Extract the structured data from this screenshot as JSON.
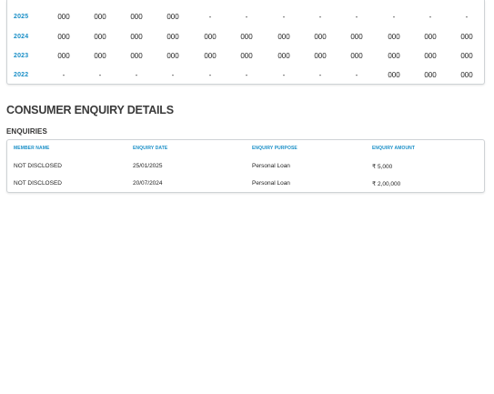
{
  "history": {
    "rows": [
      {
        "year": "2025",
        "cells": [
          "000",
          "000",
          "000",
          "000",
          "-",
          "-",
          "-",
          "-",
          "-",
          "-",
          "-",
          "-"
        ]
      },
      {
        "year": "2024",
        "cells": [
          "000",
          "000",
          "000",
          "000",
          "000",
          "000",
          "000",
          "000",
          "000",
          "000",
          "000",
          "000"
        ]
      },
      {
        "year": "2023",
        "cells": [
          "000",
          "000",
          "000",
          "000",
          "000",
          "000",
          "000",
          "000",
          "000",
          "000",
          "000",
          "000"
        ]
      },
      {
        "year": "2022",
        "cells": [
          "-",
          "-",
          "-",
          "-",
          "-",
          "-",
          "-",
          "-",
          "-",
          "000",
          "000",
          "000"
        ]
      }
    ]
  },
  "section": {
    "title": "CONSUMER ENQUIRY DETAILS",
    "subtitle": "ENQUIRIES"
  },
  "enquiries": {
    "headers": [
      "MEMBER NAME",
      "ENQUIRY DATE",
      "ENQUIRY PURPOSE",
      "ENQUIRY AMOUNT"
    ],
    "rows": [
      {
        "member": "NOT DISCLOSED",
        "date": "25/01/2025",
        "purpose": "Personal Loan",
        "amount": "₹ 5,000"
      },
      {
        "member": "NOT DISCLOSED",
        "date": "20/07/2024",
        "purpose": "Personal Loan",
        "amount": "₹ 2,00,000"
      }
    ]
  }
}
